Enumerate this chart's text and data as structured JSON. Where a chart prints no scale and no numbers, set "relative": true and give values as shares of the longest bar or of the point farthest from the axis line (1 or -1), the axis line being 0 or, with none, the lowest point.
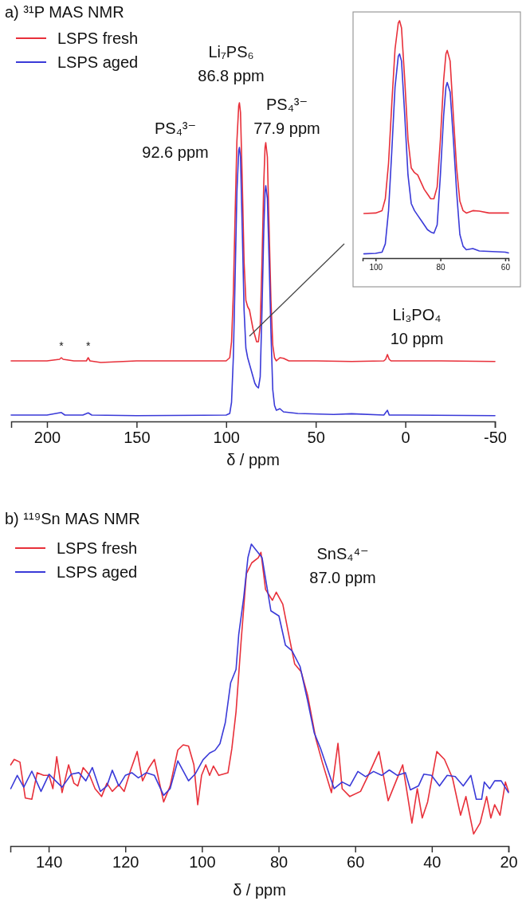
{
  "chart_data": [
    {
      "type": "line",
      "title": "a) ³¹P MAS NMR",
      "xlabel": "δ / ppm",
      "relative": true,
      "xlim": [
        220,
        -50
      ],
      "xticks": [
        200,
        150,
        100,
        50,
        0,
        -50
      ],
      "legend": "top left",
      "annotations": [
        "Li₇PS₆\n86.8 ppm",
        "PS₄³⁻\n92.6 ppm",
        "PS₄³⁻\n77.9 ppm",
        "Li₃PO₄\n10 ppm",
        {
          "text": "*",
          "x": 192,
          "y": 0.2
        },
        {
          "text": "*",
          "x": 177,
          "y": 0.2
        }
      ],
      "series": [
        {
          "name": "LSPS fresh",
          "color": "#e8303a",
          "x": [
            220,
            200,
            193,
            192,
            191,
            185,
            178,
            177,
            176,
            170,
            150,
            120,
            100,
            98,
            97,
            96,
            95,
            94,
            93,
            92.6,
            92,
            91,
            90,
            89,
            88,
            87,
            86,
            85,
            84,
            83,
            82,
            81,
            80,
            79,
            78.3,
            77.9,
            77,
            76,
            75,
            74,
            73,
            72,
            70,
            68,
            65,
            50,
            30,
            12,
            11,
            10,
            9,
            8,
            0,
            -20,
            -50
          ],
          "values": [
            0.19,
            0.19,
            0.195,
            0.2,
            0.195,
            0.19,
            0.19,
            0.2,
            0.19,
            0.185,
            0.19,
            0.19,
            0.19,
            0.2,
            0.25,
            0.4,
            0.65,
            0.88,
            0.99,
            1.0,
            0.97,
            0.75,
            0.5,
            0.38,
            0.36,
            0.35,
            0.32,
            0.29,
            0.27,
            0.25,
            0.25,
            0.3,
            0.5,
            0.75,
            0.86,
            0.875,
            0.83,
            0.6,
            0.38,
            0.24,
            0.2,
            0.19,
            0.2,
            0.198,
            0.19,
            0.19,
            0.188,
            0.19,
            0.195,
            0.21,
            0.195,
            0.19,
            0.19,
            0.19,
            0.188
          ]
        },
        {
          "name": "LSPS aged",
          "color": "#3a3ad8",
          "x": [
            220,
            200,
            192,
            190,
            180,
            177,
            175,
            150,
            100,
            98,
            97,
            96,
            95,
            94,
            93,
            92.6,
            92,
            91,
            90,
            89,
            88,
            87,
            86,
            85,
            84,
            83,
            82,
            81,
            80,
            79,
            78.3,
            77.9,
            77,
            76,
            75,
            74,
            73,
            72,
            70,
            68,
            60,
            40,
            30,
            12,
            10,
            9,
            0,
            -50
          ],
          "values": [
            0.02,
            0.02,
            0.028,
            0.02,
            0.02,
            0.027,
            0.02,
            0.018,
            0.02,
            0.025,
            0.06,
            0.2,
            0.45,
            0.72,
            0.85,
            0.86,
            0.83,
            0.6,
            0.35,
            0.23,
            0.2,
            0.18,
            0.16,
            0.14,
            0.12,
            0.11,
            0.105,
            0.14,
            0.35,
            0.6,
            0.72,
            0.74,
            0.7,
            0.5,
            0.28,
            0.1,
            0.05,
            0.035,
            0.04,
            0.03,
            0.025,
            0.022,
            0.024,
            0.02,
            0.035,
            0.02,
            0.02,
            0.018
          ]
        }
      ]
    },
    {
      "type": "line",
      "relative": true,
      "xlim": [
        104,
        59
      ],
      "xticks": [
        100,
        80,
        60
      ],
      "series": [
        {
          "color": "#e8303a",
          "x": [
            103.6,
            100,
            98,
            97,
            96,
            95,
            94,
            93,
            92.6,
            92,
            91,
            90,
            89,
            88,
            87,
            86,
            85,
            84,
            83,
            82,
            81,
            80,
            79,
            78.3,
            77.9,
            77,
            76,
            75,
            74,
            73,
            72,
            70,
            68,
            65,
            59
          ],
          "values": [
            0.188,
            0.19,
            0.2,
            0.25,
            0.4,
            0.65,
            0.88,
            0.99,
            1.0,
            0.97,
            0.75,
            0.5,
            0.38,
            0.36,
            0.35,
            0.32,
            0.29,
            0.27,
            0.25,
            0.25,
            0.3,
            0.5,
            0.75,
            0.86,
            0.875,
            0.83,
            0.6,
            0.38,
            0.24,
            0.2,
            0.19,
            0.2,
            0.198,
            0.19,
            0.19
          ]
        },
        {
          "color": "#3a3ad8",
          "x": [
            103.6,
            100,
            98,
            97,
            96,
            95,
            94,
            93,
            92.6,
            92,
            91,
            90,
            89,
            88,
            87,
            86,
            85,
            84,
            83,
            82,
            81,
            80,
            79,
            78.3,
            77.9,
            77,
            76,
            75,
            74,
            73,
            72,
            70,
            68,
            60,
            59
          ],
          "values": [
            0.018,
            0.02,
            0.025,
            0.06,
            0.2,
            0.45,
            0.72,
            0.85,
            0.86,
            0.83,
            0.6,
            0.35,
            0.23,
            0.2,
            0.18,
            0.16,
            0.14,
            0.12,
            0.11,
            0.105,
            0.14,
            0.35,
            0.6,
            0.72,
            0.74,
            0.7,
            0.5,
            0.28,
            0.1,
            0.05,
            0.035,
            0.04,
            0.03,
            0.025,
            0.022
          ]
        }
      ]
    },
    {
      "type": "line",
      "title": "b) ¹¹⁹Sn MAS NMR",
      "xlabel": "δ / ppm",
      "relative": true,
      "xlim": [
        150,
        20
      ],
      "xticks": [
        140,
        120,
        100,
        80,
        60,
        40,
        20
      ],
      "legend": "top left",
      "annotations": [
        "SnS₄⁴⁻\n87.0 ppm"
      ],
      "series": [
        {
          "name": "LSPS fresh",
          "color": "#e8303a",
          "x": [
            149.9,
            149.0,
            147.5,
            146.1,
            144.4,
            143.0,
            141.3,
            139.9,
            138.9,
            137.9,
            136.5,
            134.8,
            133.4,
            132.4,
            131.0,
            129.3,
            127.9,
            126.2,
            124.8,
            123.4,
            121.7,
            120.3,
            118.6,
            116.9,
            115.5,
            113.8,
            112.4,
            110.0,
            108.3,
            106.3,
            104.9,
            103.5,
            102.1,
            101.1,
            100.1,
            99.0,
            98.0,
            97.0,
            95.6,
            93.2,
            92.2,
            91.1,
            89.8,
            88.4,
            87.0,
            85.3,
            84.6,
            83.4,
            81.6,
            80.6,
            78.9,
            77.2,
            75.8,
            74.1,
            72.4,
            70.3,
            68.6,
            66.2,
            64.5,
            63.4,
            61.4,
            58.6,
            56.6,
            53.8,
            51.4,
            49.3,
            47.6,
            45.2,
            43.8,
            42.5,
            41.1,
            38.7,
            36.7,
            34.6,
            32.5,
            31.1,
            29.1,
            27.4,
            25.7,
            24.6,
            23.6,
            22.2,
            20.8,
            20
          ],
          "values": [
            0.269,
            0.287,
            0.278,
            0.159,
            0.155,
            0.243,
            0.234,
            0.234,
            0.19,
            0.296,
            0.177,
            0.269,
            0.208,
            0.199,
            0.26,
            0.234,
            0.19,
            0.164,
            0.208,
            0.181,
            0.203,
            0.181,
            0.252,
            0.313,
            0.216,
            0.26,
            0.287,
            0.146,
            0.199,
            0.318,
            0.335,
            0.331,
            0.269,
            0.137,
            0.234,
            0.269,
            0.234,
            0.265,
            0.234,
            0.243,
            0.322,
            0.445,
            0.674,
            0.902,
            0.938,
            0.955,
            0.973,
            0.85,
            0.814,
            0.841,
            0.801,
            0.691,
            0.603,
            0.577,
            0.498,
            0.357,
            0.278,
            0.177,
            0.34,
            0.19,
            0.164,
            0.181,
            0.234,
            0.313,
            0.15,
            0.216,
            0.269,
            0.076,
            0.19,
            0.093,
            0.146,
            0.313,
            0.287,
            0.225,
            0.102,
            0.164,
            0.04,
            0.076,
            0.164,
            0.093,
            0.137,
            0.102,
            0.212,
            0.181
          ]
        },
        {
          "name": "LSPS aged",
          "color": "#3a3ad8",
          "x": [
            149.9,
            148.2,
            146.5,
            144.4,
            142.0,
            139.9,
            138.2,
            136.5,
            134.1,
            132.1,
            130.3,
            128.6,
            126.5,
            124.8,
            123.4,
            121.7,
            120.0,
            118.3,
            116.6,
            114.5,
            112.4,
            110.0,
            108.3,
            106.3,
            103.5,
            101.8,
            99.7,
            98.0,
            96.6,
            95.3,
            93.9,
            92.5,
            91.1,
            90.4,
            89.1,
            88.0,
            87.1,
            86.0,
            84.3,
            82.0,
            79.9,
            78.2,
            76.5,
            74.4,
            72.4,
            70.7,
            69.0,
            66.9,
            65.5,
            63.4,
            61.4,
            59.3,
            57.3,
            55.2,
            53.1,
            51.1,
            49.0,
            46.9,
            45.6,
            43.5,
            42.1,
            40.1,
            38.0,
            36.0,
            33.9,
            31.8,
            29.8,
            28.4,
            27.0,
            26.3,
            24.9,
            23.6,
            21.9,
            20
          ],
          "values": [
            0.19,
            0.234,
            0.195,
            0.248,
            0.181,
            0.238,
            0.216,
            0.195,
            0.238,
            0.243,
            0.216,
            0.26,
            0.181,
            0.199,
            0.251,
            0.199,
            0.234,
            0.243,
            0.226,
            0.243,
            0.234,
            0.168,
            0.19,
            0.282,
            0.216,
            0.238,
            0.286,
            0.308,
            0.317,
            0.339,
            0.409,
            0.541,
            0.585,
            0.7,
            0.823,
            0.955,
            1.0,
            0.982,
            0.955,
            0.779,
            0.762,
            0.665,
            0.647,
            0.595,
            0.48,
            0.375,
            0.322,
            0.243,
            0.19,
            0.212,
            0.199,
            0.247,
            0.23,
            0.247,
            0.234,
            0.252,
            0.234,
            0.243,
            0.186,
            0.199,
            0.238,
            0.234,
            0.199,
            0.234,
            0.23,
            0.199,
            0.234,
            0.155,
            0.155,
            0.212,
            0.19,
            0.216,
            0.216,
            0.177
          ]
        }
      ]
    }
  ]
}
